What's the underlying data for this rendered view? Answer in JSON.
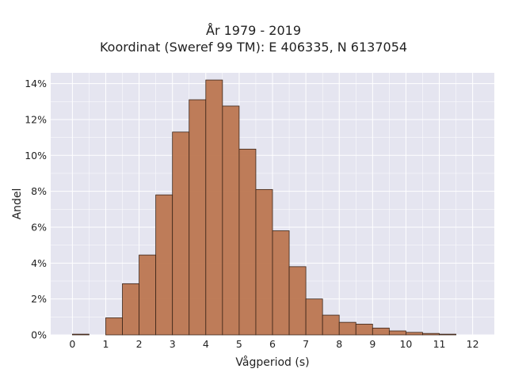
{
  "chart_data": {
    "type": "bar",
    "title_lines": [
      "År 1979 - 2019",
      "Koordinat (Sweref 99 TM): E 406335, N 6137054"
    ],
    "xlabel": "Vågperiod (s)",
    "ylabel": "Andel",
    "x_ticks": [
      "0",
      "1",
      "2",
      "3",
      "4",
      "5",
      "6",
      "7",
      "8",
      "9",
      "10",
      "11",
      "12"
    ],
    "y_ticks": [
      "0%",
      "2%",
      "4%",
      "6%",
      "8%",
      "10%",
      "12%",
      "14%"
    ],
    "xlim": [
      -0.65,
      12.65
    ],
    "ylim": [
      0,
      14.6
    ],
    "bin_width": 0.5,
    "bins": [
      {
        "x0": 0.0,
        "value": 0.04
      },
      {
        "x0": 1.0,
        "value": 0.95
      },
      {
        "x0": 1.5,
        "value": 2.85
      },
      {
        "x0": 2.0,
        "value": 4.45
      },
      {
        "x0": 2.5,
        "value": 7.8
      },
      {
        "x0": 3.0,
        "value": 11.3
      },
      {
        "x0": 3.5,
        "value": 13.1
      },
      {
        "x0": 4.0,
        "value": 14.2
      },
      {
        "x0": 4.5,
        "value": 12.75
      },
      {
        "x0": 5.0,
        "value": 10.35
      },
      {
        "x0": 5.5,
        "value": 8.1
      },
      {
        "x0": 6.0,
        "value": 5.8
      },
      {
        "x0": 6.5,
        "value": 3.8
      },
      {
        "x0": 7.0,
        "value": 2.0
      },
      {
        "x0": 7.5,
        "value": 1.1
      },
      {
        "x0": 8.0,
        "value": 0.7
      },
      {
        "x0": 8.5,
        "value": 0.6
      },
      {
        "x0": 9.0,
        "value": 0.38
      },
      {
        "x0": 9.5,
        "value": 0.22
      },
      {
        "x0": 10.0,
        "value": 0.14
      },
      {
        "x0": 10.5,
        "value": 0.08
      },
      {
        "x0": 11.0,
        "value": 0.04
      }
    ],
    "grid": true,
    "colors": {
      "bar_fill": "#bc7650",
      "bar_edge": "#3a2418",
      "plot_bg": "#e5e5f0",
      "grid": "#ffffff"
    }
  }
}
